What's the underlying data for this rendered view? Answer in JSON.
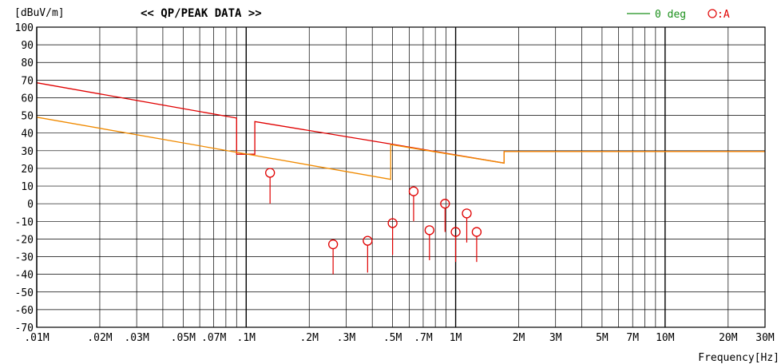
{
  "chart_data": {
    "type": "scatter",
    "title": "<< QP/PEAK DATA >>",
    "ylabel": "[dBuV/m]",
    "xlabel": "Frequency[Hz]",
    "xscale": "log",
    "xlim": [
      0.01,
      30
    ],
    "ylim": [
      -70,
      100
    ],
    "grid": true,
    "y_ticks": [
      "100",
      "90",
      "80",
      "70",
      "60",
      "50",
      "40",
      "30",
      "20",
      "10",
      "0",
      "-10",
      "-20",
      "-30",
      "-40",
      "-50",
      "-60",
      "-70"
    ],
    "y_tick_values": [
      100,
      90,
      80,
      70,
      60,
      50,
      40,
      30,
      20,
      10,
      0,
      -10,
      -20,
      -30,
      -40,
      -50,
      -60,
      -70
    ],
    "x_ticks": [
      {
        "value": 0.01,
        "label": ".01M"
      },
      {
        "value": 0.02,
        "label": ".02M"
      },
      {
        "value": 0.03,
        "label": ".03M"
      },
      {
        "value": 0.05,
        "label": ".05M"
      },
      {
        "value": 0.07,
        "label": ".07M"
      },
      {
        "value": 0.1,
        "label": ".1M"
      },
      {
        "value": 0.2,
        "label": ".2M"
      },
      {
        "value": 0.3,
        "label": ".3M"
      },
      {
        "value": 0.5,
        "label": ".5M"
      },
      {
        "value": 0.7,
        "label": ".7M"
      },
      {
        "value": 1,
        "label": "1M"
      },
      {
        "value": 2,
        "label": "2M"
      },
      {
        "value": 3,
        "label": "3M"
      },
      {
        "value": 5,
        "label": "5M"
      },
      {
        "value": 7,
        "label": "7M"
      },
      {
        "value": 10,
        "label": "10M"
      },
      {
        "value": 20,
        "label": "20M"
      },
      {
        "value": 30,
        "label": "30M"
      }
    ],
    "legend": [
      {
        "label": "0 deg",
        "color": "#1a8f1a"
      },
      {
        "label": ":A",
        "color": "#e00000"
      }
    ],
    "limit_lines": [
      {
        "color": "#e00000",
        "points": [
          [
            0.01,
            68.5
          ],
          [
            0.09,
            48.5
          ],
          [
            0.09,
            28
          ],
          [
            0.11,
            28
          ],
          [
            0.11,
            46.5
          ],
          [
            0.49,
            33.8
          ],
          [
            1.705,
            23
          ],
          [
            1.705,
            29.5
          ],
          [
            30,
            29.5
          ]
        ]
      },
      {
        "color": "#f08a00",
        "points": [
          [
            0.01,
            49
          ],
          [
            0.49,
            13.8
          ],
          [
            0.49,
            33.5
          ],
          [
            1.705,
            23
          ],
          [
            1.705,
            29.5
          ],
          [
            30,
            29.5
          ]
        ]
      }
    ],
    "series": [
      {
        "name": ":A",
        "color": "#e00000",
        "points": [
          {
            "x": 0.13,
            "top": 17.5,
            "bottom": 0
          },
          {
            "x": 0.26,
            "top": -23,
            "bottom": -40
          },
          {
            "x": 0.38,
            "top": -21,
            "bottom": -39
          },
          {
            "x": 0.5,
            "top": -11,
            "bottom": -29
          },
          {
            "x": 0.63,
            "top": 7,
            "bottom": -10
          },
          {
            "x": 0.75,
            "top": -15,
            "bottom": -32
          },
          {
            "x": 0.89,
            "top": 0,
            "bottom": -16
          },
          {
            "x": 1.0,
            "top": -16,
            "bottom": -33
          },
          {
            "x": 1.13,
            "top": -5.5,
            "bottom": -22
          },
          {
            "x": 1.26,
            "top": -16,
            "bottom": -33
          }
        ]
      }
    ]
  }
}
